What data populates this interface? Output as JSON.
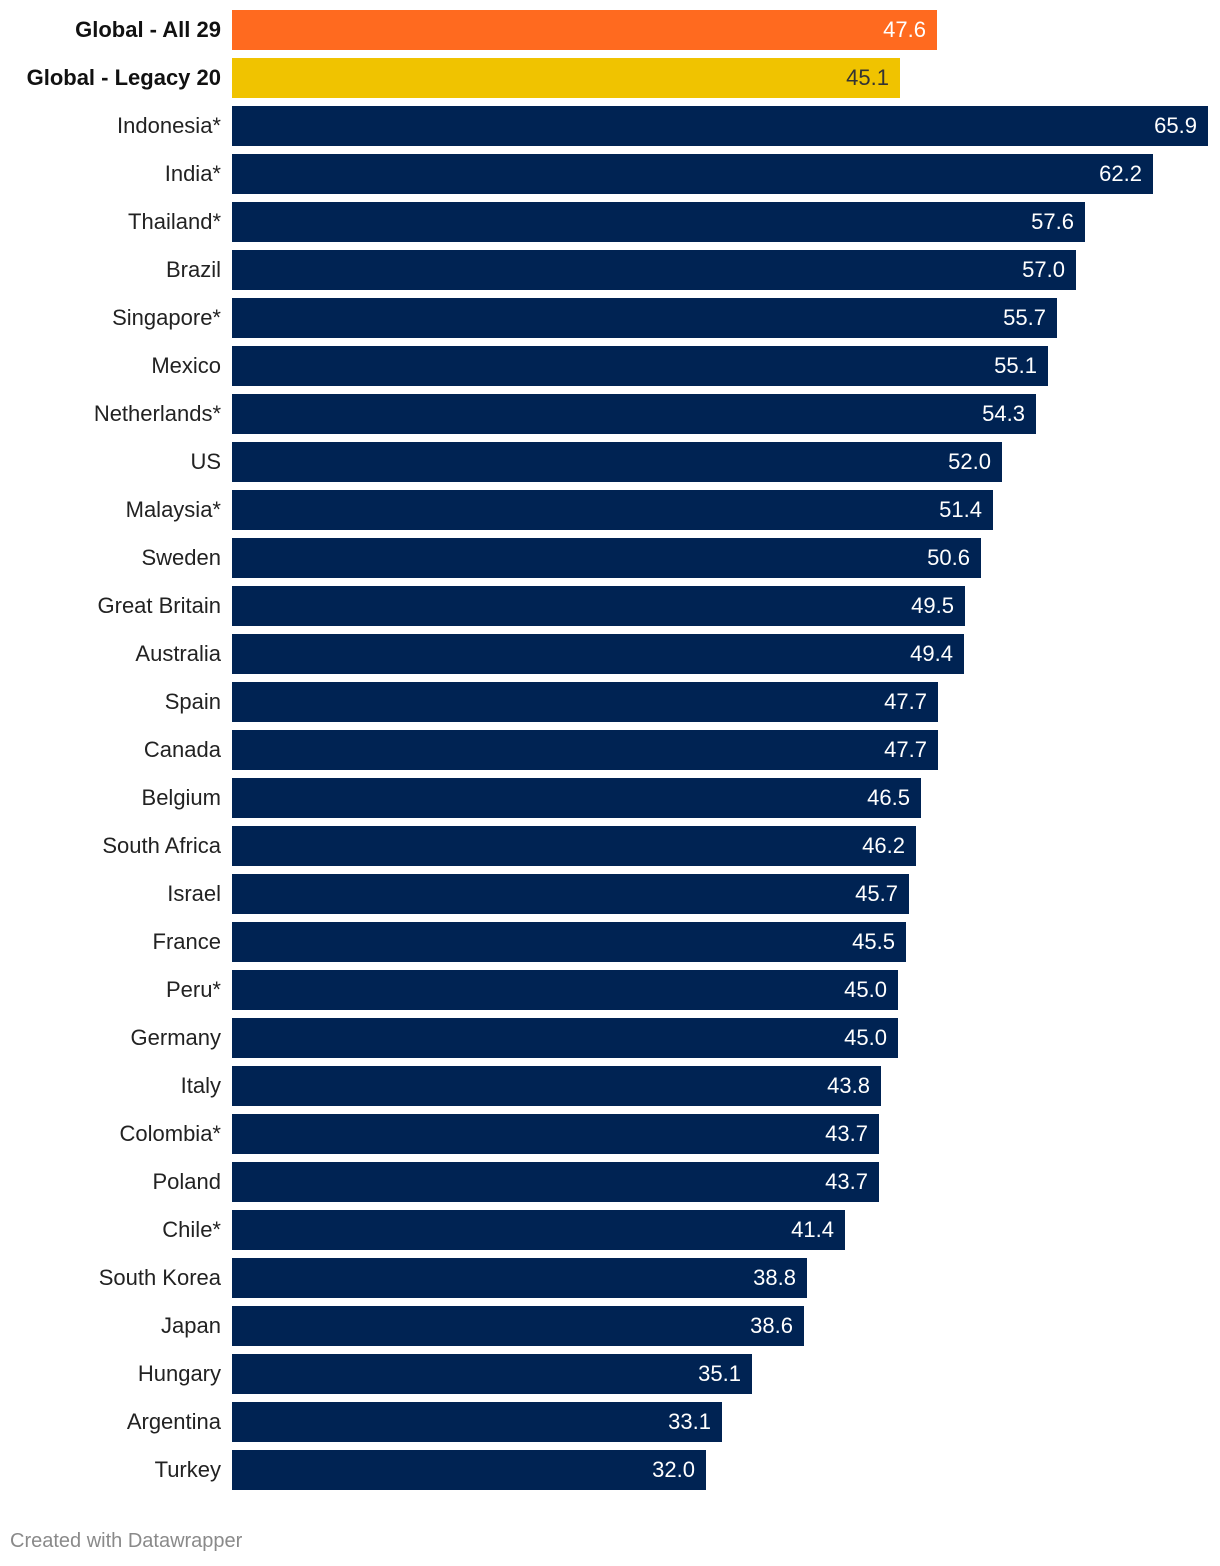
{
  "chart_data": {
    "type": "bar",
    "orientation": "horizontal",
    "xlim": [
      0,
      65.9
    ],
    "colors": {
      "global_all": "#ff6a1f",
      "global_legacy": "#f0c300",
      "country": "#002353",
      "value_light": "#ffffff",
      "value_dark": "#333333"
    },
    "rows": [
      {
        "category": "Global - All 29",
        "value": 47.6,
        "value_label": "47.6",
        "kind": "global_all",
        "bold": true
      },
      {
        "category": "Global - Legacy 20",
        "value": 45.1,
        "value_label": "45.1",
        "kind": "global_legacy",
        "bold": true
      },
      {
        "category": "Indonesia*",
        "value": 65.9,
        "value_label": "65.9",
        "kind": "country"
      },
      {
        "category": "India*",
        "value": 62.2,
        "value_label": "62.2",
        "kind": "country"
      },
      {
        "category": "Thailand*",
        "value": 57.6,
        "value_label": "57.6",
        "kind": "country"
      },
      {
        "category": "Brazil",
        "value": 57.0,
        "value_label": "57.0",
        "kind": "country"
      },
      {
        "category": "Singapore*",
        "value": 55.7,
        "value_label": "55.7",
        "kind": "country"
      },
      {
        "category": "Mexico",
        "value": 55.1,
        "value_label": "55.1",
        "kind": "country"
      },
      {
        "category": "Netherlands*",
        "value": 54.3,
        "value_label": "54.3",
        "kind": "country"
      },
      {
        "category": "US",
        "value": 52.0,
        "value_label": "52.0",
        "kind": "country"
      },
      {
        "category": "Malaysia*",
        "value": 51.4,
        "value_label": "51.4",
        "kind": "country"
      },
      {
        "category": "Sweden",
        "value": 50.6,
        "value_label": "50.6",
        "kind": "country"
      },
      {
        "category": "Great Britain",
        "value": 49.5,
        "value_label": "49.5",
        "kind": "country"
      },
      {
        "category": "Australia",
        "value": 49.4,
        "value_label": "49.4",
        "kind": "country"
      },
      {
        "category": "Spain",
        "value": 47.7,
        "value_label": "47.7",
        "kind": "country"
      },
      {
        "category": "Canada",
        "value": 47.7,
        "value_label": "47.7",
        "kind": "country"
      },
      {
        "category": "Belgium",
        "value": 46.5,
        "value_label": "46.5",
        "kind": "country"
      },
      {
        "category": "South Africa",
        "value": 46.2,
        "value_label": "46.2",
        "kind": "country"
      },
      {
        "category": "Israel",
        "value": 45.7,
        "value_label": "45.7",
        "kind": "country"
      },
      {
        "category": "France",
        "value": 45.5,
        "value_label": "45.5",
        "kind": "country"
      },
      {
        "category": "Peru*",
        "value": 45.0,
        "value_label": "45.0",
        "kind": "country"
      },
      {
        "category": "Germany",
        "value": 45.0,
        "value_label": "45.0",
        "kind": "country"
      },
      {
        "category": "Italy",
        "value": 43.8,
        "value_label": "43.8",
        "kind": "country"
      },
      {
        "category": "Colombia*",
        "value": 43.7,
        "value_label": "43.7",
        "kind": "country"
      },
      {
        "category": "Poland",
        "value": 43.7,
        "value_label": "43.7",
        "kind": "country"
      },
      {
        "category": "Chile*",
        "value": 41.4,
        "value_label": "41.4",
        "kind": "country"
      },
      {
        "category": "South Korea",
        "value": 38.8,
        "value_label": "38.8",
        "kind": "country"
      },
      {
        "category": "Japan",
        "value": 38.6,
        "value_label": "38.6",
        "kind": "country"
      },
      {
        "category": "Hungary",
        "value": 35.1,
        "value_label": "35.1",
        "kind": "country"
      },
      {
        "category": "Argentina",
        "value": 33.1,
        "value_label": "33.1",
        "kind": "country"
      },
      {
        "category": "Turkey",
        "value": 32.0,
        "value_label": "32.0",
        "kind": "country"
      }
    ]
  },
  "footer": {
    "credit": "Created with Datawrapper"
  }
}
